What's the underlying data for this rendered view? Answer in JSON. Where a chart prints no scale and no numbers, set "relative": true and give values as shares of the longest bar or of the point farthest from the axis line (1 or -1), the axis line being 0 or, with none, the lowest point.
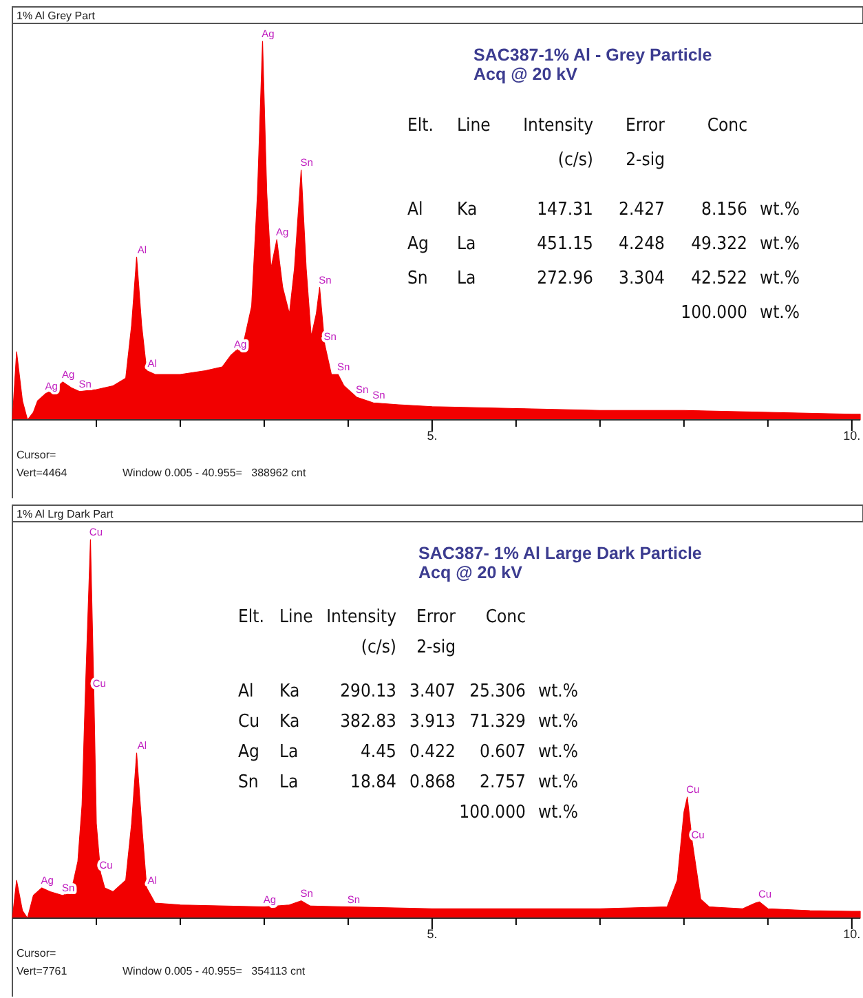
{
  "chart_data": [
    {
      "type": "area",
      "title": "1% Al Grey Part",
      "subtitle": "SAC387-1% Al - Grey Particle",
      "relative": true,
      "xlim": [
        0,
        10.1
      ],
      "xticks": [
        {
          "value": 1,
          "label": null
        },
        {
          "value": 2,
          "label": null
        },
        {
          "value": 3,
          "label": null
        },
        {
          "value": 4,
          "label": null
        },
        {
          "value": 5,
          "label": "5."
        },
        {
          "value": 6,
          "label": null
        },
        {
          "value": 7,
          "label": null
        },
        {
          "value": 8,
          "label": null
        },
        {
          "value": 9,
          "label": null
        },
        {
          "value": 10,
          "label": "10."
        }
      ],
      "x": [
        0,
        0.05,
        0.12,
        0.18,
        0.25,
        0.3,
        0.4,
        0.5,
        0.6,
        0.7,
        0.8,
        1.0,
        1.2,
        1.35,
        1.42,
        1.48,
        1.54,
        1.6,
        1.7,
        2.0,
        2.3,
        2.5,
        2.6,
        2.65,
        2.75,
        2.85,
        2.92,
        2.98,
        3.03,
        3.08,
        3.15,
        3.22,
        3.3,
        3.36,
        3.44,
        3.5,
        3.56,
        3.62,
        3.66,
        3.72,
        3.8,
        3.88,
        3.95,
        4.1,
        4.3,
        4.6,
        5,
        6,
        7,
        8,
        9,
        10,
        10.1
      ],
      "series": [
        {
          "color": "#f20000",
          "values": [
            0,
            0.18,
            0.05,
            0,
            0.02,
            0.05,
            0.07,
            0.08,
            0.1,
            0.085,
            0.075,
            0.08,
            0.09,
            0.11,
            0.25,
            0.43,
            0.25,
            0.13,
            0.12,
            0.12,
            0.13,
            0.14,
            0.17,
            0.18,
            0.2,
            0.3,
            0.6,
            1.0,
            0.6,
            0.4,
            0.476,
            0.35,
            0.28,
            0.4,
            0.66,
            0.4,
            0.22,
            0.28,
            0.35,
            0.2,
            0.12,
            0.12,
            0.09,
            0.06,
            0.045,
            0.04,
            0.035,
            0.03,
            0.025,
            0.025,
            0.02,
            0.015,
            0.015
          ]
        }
      ],
      "annotations": [
        "Acq @ 20 kV",
        "Elt.\tLine\tIntensity\tError\tConc",
        "\t\t(c/s)\t2-sig",
        "Al\tKa\t147.31\t2.427\t8.156\twt.%",
        "Ag\tLa\t451.15\t4.248\t49.322\twt.%",
        "Sn\tLa\t272.96\t3.304\t42.522\twt.%",
        "\t\t\t\t100.000\twt.%",
        "Cursor=",
        "Vert=4464",
        "Window 0.005 - 40.955=   388962 cnt",
        {
          "text": "Ag",
          "x": 2.98,
          "y": 1.0
        },
        {
          "text": "Ag",
          "x": 3.15,
          "y": 0.476
        },
        {
          "text": "Sn",
          "x": 3.44,
          "y": 0.66
        },
        {
          "text": "Sn",
          "x": 3.66,
          "y": 0.35
        },
        {
          "text": "Al",
          "x": 1.48,
          "y": 0.43
        },
        {
          "text": "Ag",
          "x": 0.4,
          "y": 0.07
        },
        {
          "text": "Ag",
          "x": 0.6,
          "y": 0.1
        },
        {
          "text": "Sn",
          "x": 0.8,
          "y": 0.075
        },
        {
          "text": "Ag",
          "x": 2.65,
          "y": 0.18
        },
        {
          "text": "Sn",
          "x": 3.88,
          "y": 0.12
        },
        {
          "text": "Sn",
          "x": 4.1,
          "y": 0.06
        },
        {
          "text": "Sn",
          "x": 4.3,
          "y": 0.045
        },
        {
          "text": "Al",
          "x": 1.6,
          "y": 0.13
        },
        {
          "text": "Sn",
          "x": 3.72,
          "y": 0.2
        }
      ]
    },
    {
      "type": "area",
      "title": "1% Al Lrg Dark Part",
      "subtitle": "SAC387- 1% Al  Large Dark Particle",
      "relative": true,
      "xlim": [
        0,
        10.1
      ],
      "xticks": [
        {
          "value": 1,
          "label": null
        },
        {
          "value": 2,
          "label": null
        },
        {
          "value": 3,
          "label": null
        },
        {
          "value": 4,
          "label": null
        },
        {
          "value": 5,
          "label": "5."
        },
        {
          "value": 6,
          "label": null
        },
        {
          "value": 7,
          "label": null
        },
        {
          "value": 8,
          "label": null
        },
        {
          "value": 9,
          "label": null
        },
        {
          "value": 10,
          "label": "10."
        }
      ],
      "x": [
        0,
        0.05,
        0.12,
        0.18,
        0.25,
        0.35,
        0.45,
        0.6,
        0.7,
        0.78,
        0.83,
        0.87,
        0.93,
        0.97,
        1.0,
        1.05,
        1.1,
        1.2,
        1.35,
        1.42,
        1.48,
        1.54,
        1.6,
        1.7,
        2,
        3,
        3.3,
        3.44,
        3.55,
        4,
        5,
        6,
        7,
        7.8,
        7.92,
        8.0,
        8.04,
        8.1,
        8.2,
        8.3,
        8.7,
        8.85,
        8.9,
        9.0,
        9.5,
        10,
        10.1
      ],
      "series": [
        {
          "color": "#f20000",
          "values": [
            0,
            0.1,
            0.02,
            0,
            0.06,
            0.08,
            0.07,
            0.06,
            0.07,
            0.15,
            0.3,
            0.6,
            1.0,
            0.6,
            0.25,
            0.12,
            0.08,
            0.07,
            0.1,
            0.25,
            0.436,
            0.25,
            0.08,
            0.04,
            0.035,
            0.03,
            0.035,
            0.046,
            0.032,
            0.03,
            0.025,
            0.025,
            0.025,
            0.03,
            0.1,
            0.28,
            0.32,
            0.2,
            0.05,
            0.03,
            0.025,
            0.04,
            0.043,
            0.025,
            0.02,
            0.018,
            0.018
          ]
        }
      ],
      "annotations": [
        "Acq @ 20 kV",
        "Elt.\tLine\tIntensity\tError\tConc",
        "\t\t(c/s)\t2-sig",
        "Al\tKa\t290.13\t3.407\t25.306\twt.%",
        "Cu\tKa\t382.83\t3.913\t71.329\twt.%",
        "Ag\tLa\t4.45\t0.422\t0.607\twt.%",
        "Sn\tLa\t18.84\t0.868\t2.757\twt.%",
        "\t\t\t\t100.000\twt.%",
        "Cursor=",
        "Vert=7761",
        "Window 0.005 - 40.955=   354113 cnt",
        {
          "text": "Cu",
          "x": 0.93,
          "y": 1.0
        },
        {
          "text": "Al",
          "x": 1.48,
          "y": 0.436
        },
        {
          "text": "Cu",
          "x": 1.05,
          "y": 0.12
        },
        {
          "text": "Ag",
          "x": 0.35,
          "y": 0.08
        },
        {
          "text": "Sn",
          "x": 0.6,
          "y": 0.06
        },
        {
          "text": "Ag",
          "x": 3,
          "y": 0.03
        },
        {
          "text": "Sn",
          "x": 3.44,
          "y": 0.046
        },
        {
          "text": "Sn",
          "x": 4,
          "y": 0.03
        },
        {
          "text": "Cu",
          "x": 8.04,
          "y": 0.32
        },
        {
          "text": "Cu",
          "x": 8.9,
          "y": 0.043
        },
        {
          "text": "Cu",
          "x": 0.97,
          "y": 0.6
        },
        {
          "text": "Al",
          "x": 1.6,
          "y": 0.08
        },
        {
          "text": "Cu",
          "x": 8.1,
          "y": 0.2
        }
      ]
    }
  ]
}
